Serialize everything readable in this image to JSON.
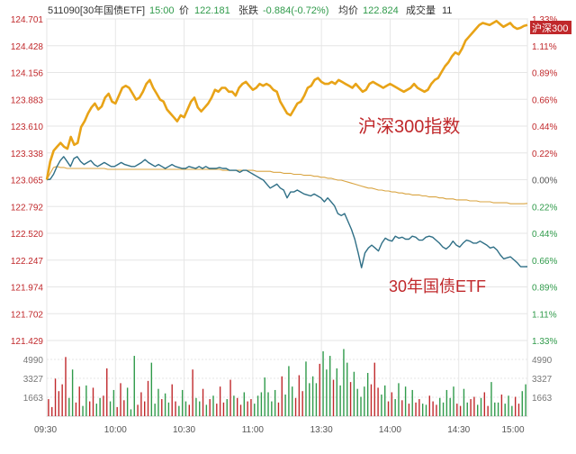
{
  "header": {
    "code": "511090[30年国债ETF]",
    "time": "15:00",
    "price_label": "价",
    "price": "122.181",
    "change_label": "张跌",
    "change": "-0.884(-0.72%)",
    "avg_label": "均价",
    "avg": "122.824",
    "volume_label": "成交量",
    "volume": "11"
  },
  "annotations": {
    "csi300": "沪深300指数",
    "bond_etf": "30年国债ETF",
    "csi300_tag": "沪深300"
  },
  "colors": {
    "csi300_line": "#e8a317",
    "etf_line": "#2f6f86",
    "avg_line": "#d9a441",
    "volume_up": "#c0282b",
    "volume_down": "#2f9a4a",
    "left_axis_text": "#c0282b",
    "right_up": "#c0282b",
    "right_down": "#2f9a4a",
    "grid": "#e6e6e6",
    "annotation": "#c0282b"
  },
  "chart_data": {
    "type": "line",
    "x_ticks": [
      "09:30",
      "10:00",
      "10:30",
      "11:00",
      "13:30",
      "14:00",
      "14:30",
      "15:00"
    ],
    "y_left_ticks": [
      "124.701",
      "124.428",
      "124.156",
      "123.883",
      "123.610",
      "123.338",
      "123.065",
      "122.792",
      "122.520",
      "122.247",
      "121.974",
      "121.702",
      "121.429"
    ],
    "y_right_ticks": [
      "1.33%",
      "1.11%",
      "0.89%",
      "0.66%",
      "0.44%",
      "0.22%",
      "0.00%",
      "0.22%",
      "0.44%",
      "0.66%",
      "0.89%",
      "1.11%",
      "1.33%"
    ],
    "volume_ticks": [
      "4990",
      "3327",
      "1663"
    ],
    "y_range": [
      121.429,
      124.701
    ],
    "volume_range": [
      0,
      6650
    ],
    "series": [
      {
        "name": "30年国债ETF",
        "values": [
          123.065,
          123.07,
          123.12,
          123.2,
          123.26,
          123.3,
          123.25,
          123.2,
          123.28,
          123.3,
          123.25,
          123.22,
          123.24,
          123.26,
          123.22,
          123.2,
          123.22,
          123.24,
          123.22,
          123.2,
          123.2,
          123.22,
          123.24,
          123.22,
          123.21,
          123.2,
          123.2,
          123.22,
          123.24,
          123.27,
          123.24,
          123.22,
          123.2,
          123.22,
          123.2,
          123.18,
          123.2,
          123.22,
          123.2,
          123.19,
          123.18,
          123.18,
          123.2,
          123.19,
          123.18,
          123.2,
          123.18,
          123.2,
          123.18,
          123.18,
          123.18,
          123.19,
          123.18,
          123.18,
          123.16,
          123.16,
          123.16,
          123.14,
          123.16,
          123.16,
          123.14,
          123.12,
          123.1,
          123.08,
          123.06,
          123.02,
          122.98,
          123.0,
          123.02,
          122.98,
          122.96,
          122.88,
          122.94,
          122.94,
          122.96,
          122.94,
          122.92,
          122.91,
          122.9,
          122.92,
          122.9,
          122.88,
          122.84,
          122.88,
          122.84,
          122.8,
          122.72,
          122.7,
          122.72,
          122.64,
          122.56,
          122.46,
          122.32,
          122.17,
          122.32,
          122.37,
          122.4,
          122.37,
          122.34,
          122.42,
          122.47,
          122.45,
          122.44,
          122.49,
          122.47,
          122.48,
          122.46,
          122.46,
          122.49,
          122.48,
          122.45,
          122.45,
          122.48,
          122.49,
          122.48,
          122.45,
          122.42,
          122.38,
          122.36,
          122.39,
          122.44,
          122.4,
          122.38,
          122.42,
          122.45,
          122.44,
          122.42,
          122.42,
          122.44,
          122.42,
          122.4,
          122.37,
          122.38,
          122.35,
          122.3,
          122.26,
          122.27,
          122.28,
          122.25,
          122.22,
          122.18,
          122.18,
          122.181
        ]
      },
      {
        "name": "沪深300",
        "values": [
          123.065,
          123.25,
          123.36,
          123.4,
          123.44,
          123.4,
          123.38,
          123.5,
          123.42,
          123.44,
          123.6,
          123.66,
          123.74,
          123.8,
          123.84,
          123.78,
          123.81,
          123.9,
          123.94,
          123.86,
          123.84,
          123.92,
          124.0,
          124.02,
          124.0,
          123.94,
          123.88,
          123.9,
          123.96,
          124.04,
          124.08,
          124.0,
          123.94,
          123.88,
          123.86,
          123.78,
          123.74,
          123.7,
          123.66,
          123.72,
          123.7,
          123.78,
          123.86,
          123.9,
          123.8,
          123.76,
          123.8,
          123.84,
          123.9,
          123.98,
          123.96,
          124.0,
          124.0,
          123.96,
          123.96,
          123.92,
          124.0,
          124.04,
          124.06,
          124.02,
          123.98,
          124.0,
          124.04,
          124.02,
          124.04,
          124.02,
          123.98,
          123.96,
          123.86,
          123.8,
          123.74,
          123.72,
          123.78,
          123.84,
          123.86,
          123.92,
          124.0,
          124.02,
          124.08,
          124.1,
          124.06,
          124.04,
          124.04,
          124.06,
          124.04,
          124.08,
          124.06,
          124.04,
          124.02,
          124.0,
          124.04,
          124.0,
          123.96,
          123.98,
          124.04,
          124.06,
          124.04,
          124.02,
          124.0,
          124.02,
          124.04,
          124.02,
          124.0,
          123.98,
          123.96,
          123.98,
          124.0,
          124.04,
          124.0,
          123.98,
          123.96,
          123.98,
          124.04,
          124.08,
          124.1,
          124.16,
          124.22,
          124.26,
          124.32,
          124.36,
          124.34,
          124.4,
          124.48,
          124.52,
          124.56,
          124.6,
          124.64,
          124.66,
          124.65,
          124.64,
          124.66,
          124.68,
          124.65,
          124.62,
          124.64,
          124.66,
          124.62,
          124.6,
          124.61,
          124.63,
          124.64
        ]
      },
      {
        "name": "均价",
        "values": [
          123.065,
          123.13,
          123.19,
          123.2,
          123.19,
          123.19,
          123.18,
          123.18,
          123.18,
          123.18,
          123.18,
          123.18,
          123.18,
          123.18,
          123.18,
          123.18,
          123.18,
          123.18,
          123.17,
          123.17,
          123.17,
          123.17,
          123.17,
          123.17,
          123.17,
          123.17,
          123.17,
          123.17,
          123.17,
          123.17,
          123.17,
          123.17,
          123.17,
          123.17,
          123.17,
          123.17,
          123.17,
          123.17,
          123.17,
          123.17,
          123.17,
          123.17,
          123.17,
          123.17,
          123.17,
          123.17,
          123.17,
          123.17,
          123.17,
          123.17,
          123.17,
          123.17,
          123.16,
          123.16,
          123.16,
          123.16,
          123.16,
          123.16,
          123.16,
          123.16,
          123.16,
          123.16,
          123.15,
          123.15,
          123.15,
          123.15,
          123.15,
          123.14,
          123.14,
          123.14,
          123.13,
          123.13,
          123.13,
          123.12,
          123.12,
          123.12,
          123.11,
          123.11,
          123.11,
          123.1,
          123.1,
          123.09,
          123.09,
          123.08,
          123.08,
          123.07,
          123.06,
          123.06,
          123.05,
          123.04,
          123.03,
          123.02,
          123.01,
          123.0,
          122.99,
          122.98,
          122.98,
          122.97,
          122.96,
          122.96,
          122.95,
          122.95,
          122.94,
          122.94,
          122.93,
          122.93,
          122.92,
          122.92,
          122.91,
          122.91,
          122.91,
          122.9,
          122.9,
          122.89,
          122.89,
          122.89,
          122.88,
          122.88,
          122.87,
          122.87,
          122.87,
          122.86,
          122.86,
          122.86,
          122.86,
          122.85,
          122.85,
          122.85,
          122.84,
          122.84,
          122.84,
          122.84,
          122.83,
          122.83,
          122.83,
          122.83,
          122.83,
          122.82,
          122.82,
          122.82,
          122.82,
          122.82,
          122.824
        ]
      }
    ],
    "volume": [
      1500,
      800,
      3300,
      2200,
      2800,
      5200,
      1600,
      4100,
      1200,
      2600,
      900,
      2700,
      1300,
      2500,
      1100,
      1600,
      1800,
      4200,
      1300,
      2300,
      800,
      2900,
      1400,
      2500,
      600,
      5300,
      1000,
      2100,
      1300,
      3100,
      4700,
      1100,
      2400,
      1500,
      2000,
      1200,
      2800,
      1300,
      900,
      2300,
      1300,
      1000,
      4100,
      1600,
      1300,
      2400,
      1000,
      1500,
      1800,
      1100,
      2600,
      1200,
      1500,
      3200,
      1800,
      1600,
      1000,
      2100,
      1300,
      1500,
      1100,
      1800,
      2100,
      3400,
      2100,
      1300,
      2300,
      1200,
      3500,
      1900,
      4400,
      2600,
      1600,
      3600,
      2200,
      4800,
      2900,
      3500,
      2900,
      4600,
      5700,
      4100,
      5300,
      3200,
      4200,
      2700,
      5900,
      4700,
      3000,
      3900,
      2400,
      1700,
      2600,
      3800,
      2800,
      4700,
      2500,
      1900,
      2700,
      1300,
      2100,
      1500,
      2900,
      1400,
      2600,
      1100,
      2300,
      1200,
      1500,
      1100,
      1000,
      1800,
      1300,
      1000,
      1600,
      1200,
      2300,
      1600,
      2600,
      1100,
      900,
      2400,
      1200,
      1500,
      1700,
      1000,
      1600,
      2100,
      900,
      3000,
      1200,
      1200,
      1900,
      1100,
      1800,
      900,
      1700,
      1100,
      2200,
      2800
    ],
    "volume_colors": "alternating per price change"
  }
}
